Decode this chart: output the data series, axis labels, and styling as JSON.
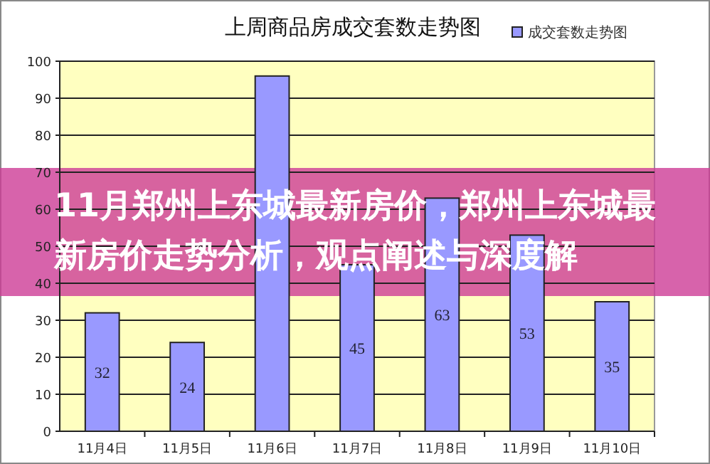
{
  "chart_data": {
    "type": "bar",
    "title": "上周商品房成交套数走势图",
    "categories": [
      "11月4日",
      "11月5日",
      "11月6日",
      "11月7日",
      "11月8日",
      "11月9日",
      "11月10日"
    ],
    "series": [
      {
        "name": "成交套数走势图",
        "color": "#9999ff",
        "values": [
          32,
          24,
          96,
          45,
          63,
          53,
          35
        ],
        "value_labels": [
          "32",
          "24",
          null,
          "45",
          "63",
          "53",
          "35"
        ]
      }
    ],
    "ylim": [
      0,
      100
    ],
    "yticks": [
      0,
      10,
      20,
      30,
      40,
      50,
      60,
      70,
      80,
      90,
      100
    ],
    "grid": "y",
    "legend": "top right",
    "annotations": [
      "11月郑州上东城最新房价，郑州上东城最新房价走势分析，观点阐述与深度解"
    ]
  }
}
